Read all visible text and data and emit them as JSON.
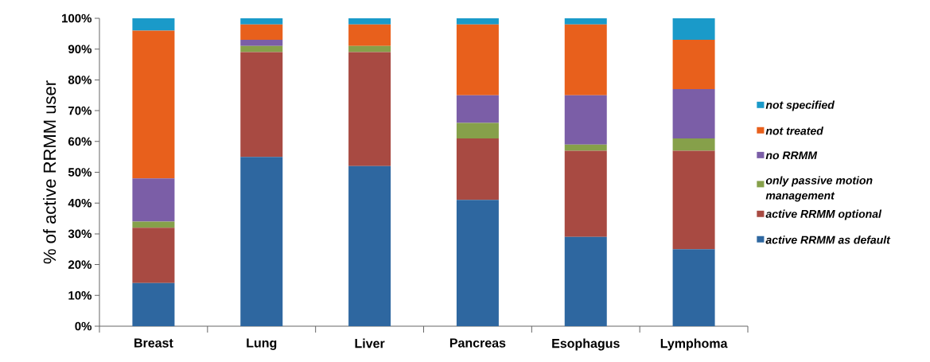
{
  "chart_data": {
    "type": "bar",
    "stacked": true,
    "ylabel": "% of active RRMM user",
    "categories": [
      "Breast",
      "Lung",
      "Liver",
      "Pancreas",
      "Esophagus",
      "Lymphoma"
    ],
    "series": [
      {
        "name": "active RRMM as default",
        "color": "#2e67a0",
        "values": [
          14,
          55,
          52,
          41,
          29,
          25
        ]
      },
      {
        "name": "active RRMM optional",
        "color": "#a84a42",
        "values": [
          18,
          34,
          37,
          20,
          28,
          32
        ]
      },
      {
        "name": "only passive motion management",
        "color": "#86a04a",
        "values": [
          2,
          2,
          2,
          5,
          2,
          4
        ]
      },
      {
        "name": "no RRMM",
        "color": "#7b5ea7",
        "values": [
          14,
          2,
          0,
          9,
          16,
          16
        ]
      },
      {
        "name": "not treated",
        "color": "#e8601c",
        "values": [
          48,
          5,
          7,
          23,
          23,
          16
        ]
      },
      {
        "name": "not specified",
        "color": "#1a9ac9",
        "values": [
          4,
          2,
          2,
          2,
          2,
          7
        ]
      }
    ],
    "ylim": [
      0,
      100
    ],
    "yticks": [
      {
        "value": 0,
        "label": "0%"
      },
      {
        "value": 10,
        "label": "10%"
      },
      {
        "value": 20,
        "label": "20%"
      },
      {
        "value": 30,
        "label": "30%"
      },
      {
        "value": 40,
        "label": "40%"
      },
      {
        "value": 50,
        "label": "50%"
      },
      {
        "value": 60,
        "label": "60%"
      },
      {
        "value": 70,
        "label": "70%"
      },
      {
        "value": 80,
        "label": "80%"
      },
      {
        "value": 90,
        "label": "90%"
      },
      {
        "value": 100,
        "label": "100%"
      }
    ],
    "grid": false,
    "legend": "right"
  }
}
